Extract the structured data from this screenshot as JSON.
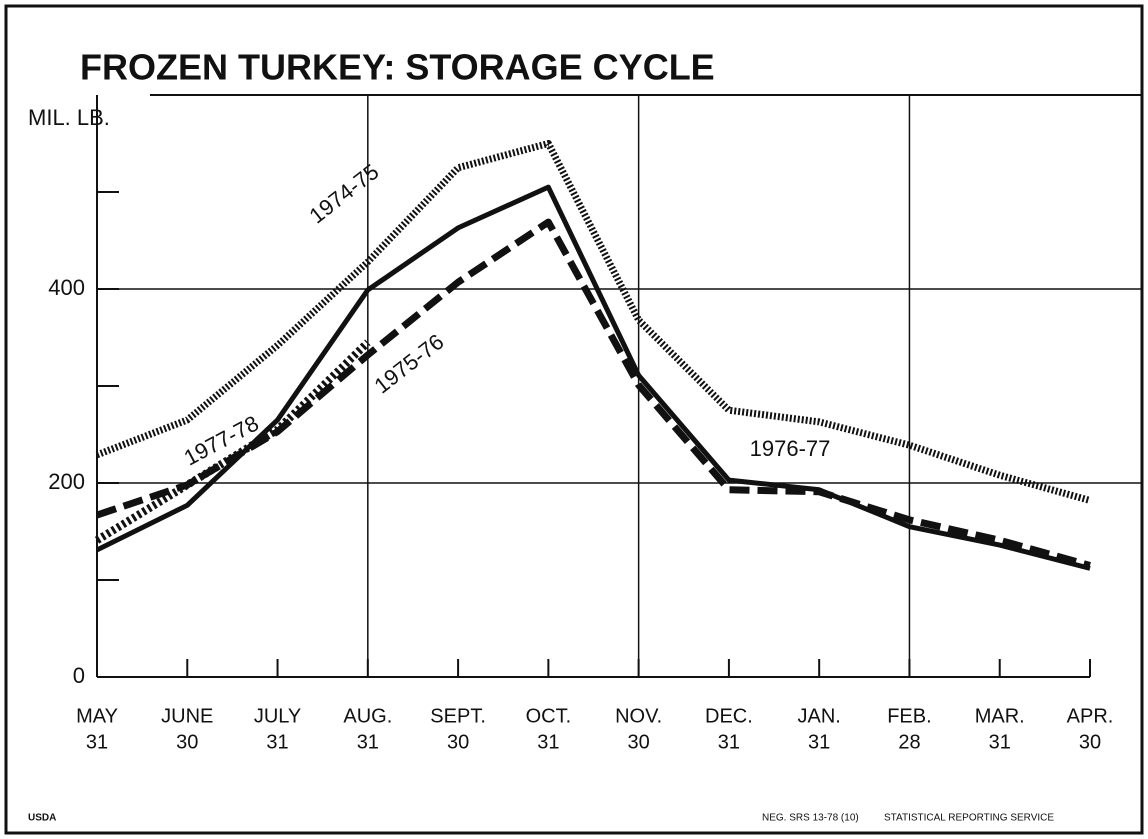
{
  "chart_data": {
    "type": "line",
    "title": "FROZEN TURKEY:  STORAGE CYCLE",
    "y_label": "MIL. LB.",
    "categories": [
      [
        "MAY",
        "31"
      ],
      [
        "JUNE",
        "30"
      ],
      [
        "JULY",
        "31"
      ],
      [
        "AUG.",
        "31"
      ],
      [
        "SEPT.",
        "30"
      ],
      [
        "OCT.",
        "31"
      ],
      [
        "NOV.",
        "30"
      ],
      [
        "DEC.",
        "31"
      ],
      [
        "JAN.",
        "31"
      ],
      [
        "FEB.",
        "28"
      ],
      [
        "MAR.",
        "31"
      ],
      [
        "APR.",
        "30"
      ]
    ],
    "series": [
      {
        "name": "1974-75",
        "style": "dotted",
        "color": "#111",
        "values": [
          229,
          265,
          342,
          428,
          525,
          550,
          368,
          275,
          263,
          239,
          208,
          182
        ]
      },
      {
        "name": "1976-77",
        "style": "solid",
        "color": "#111",
        "values": [
          131,
          177,
          265,
          399,
          463,
          505,
          311,
          203,
          193,
          155,
          136,
          112
        ]
      },
      {
        "name": "1975-76",
        "style": "dashed",
        "color": "#111",
        "values": [
          167,
          198,
          253,
          332,
          407,
          469,
          301,
          193,
          191,
          162,
          141,
          115
        ]
      },
      {
        "name": "1977-78",
        "style": "hatched",
        "color": "#111",
        "values": [
          141,
          198,
          255,
          345,
          null,
          null,
          null,
          null,
          null,
          null,
          null,
          null
        ]
      }
    ],
    "ylim": [
      0,
      600
    ],
    "yticks": [
      0,
      200,
      400
    ],
    "yminor_ticks": [
      100,
      300,
      500
    ],
    "grid": true,
    "footer": {
      "left": "USDA",
      "middle": "NEG. SRS 13-78 (10)",
      "right": "STATISTICAL REPORTING  SERVICE"
    }
  }
}
